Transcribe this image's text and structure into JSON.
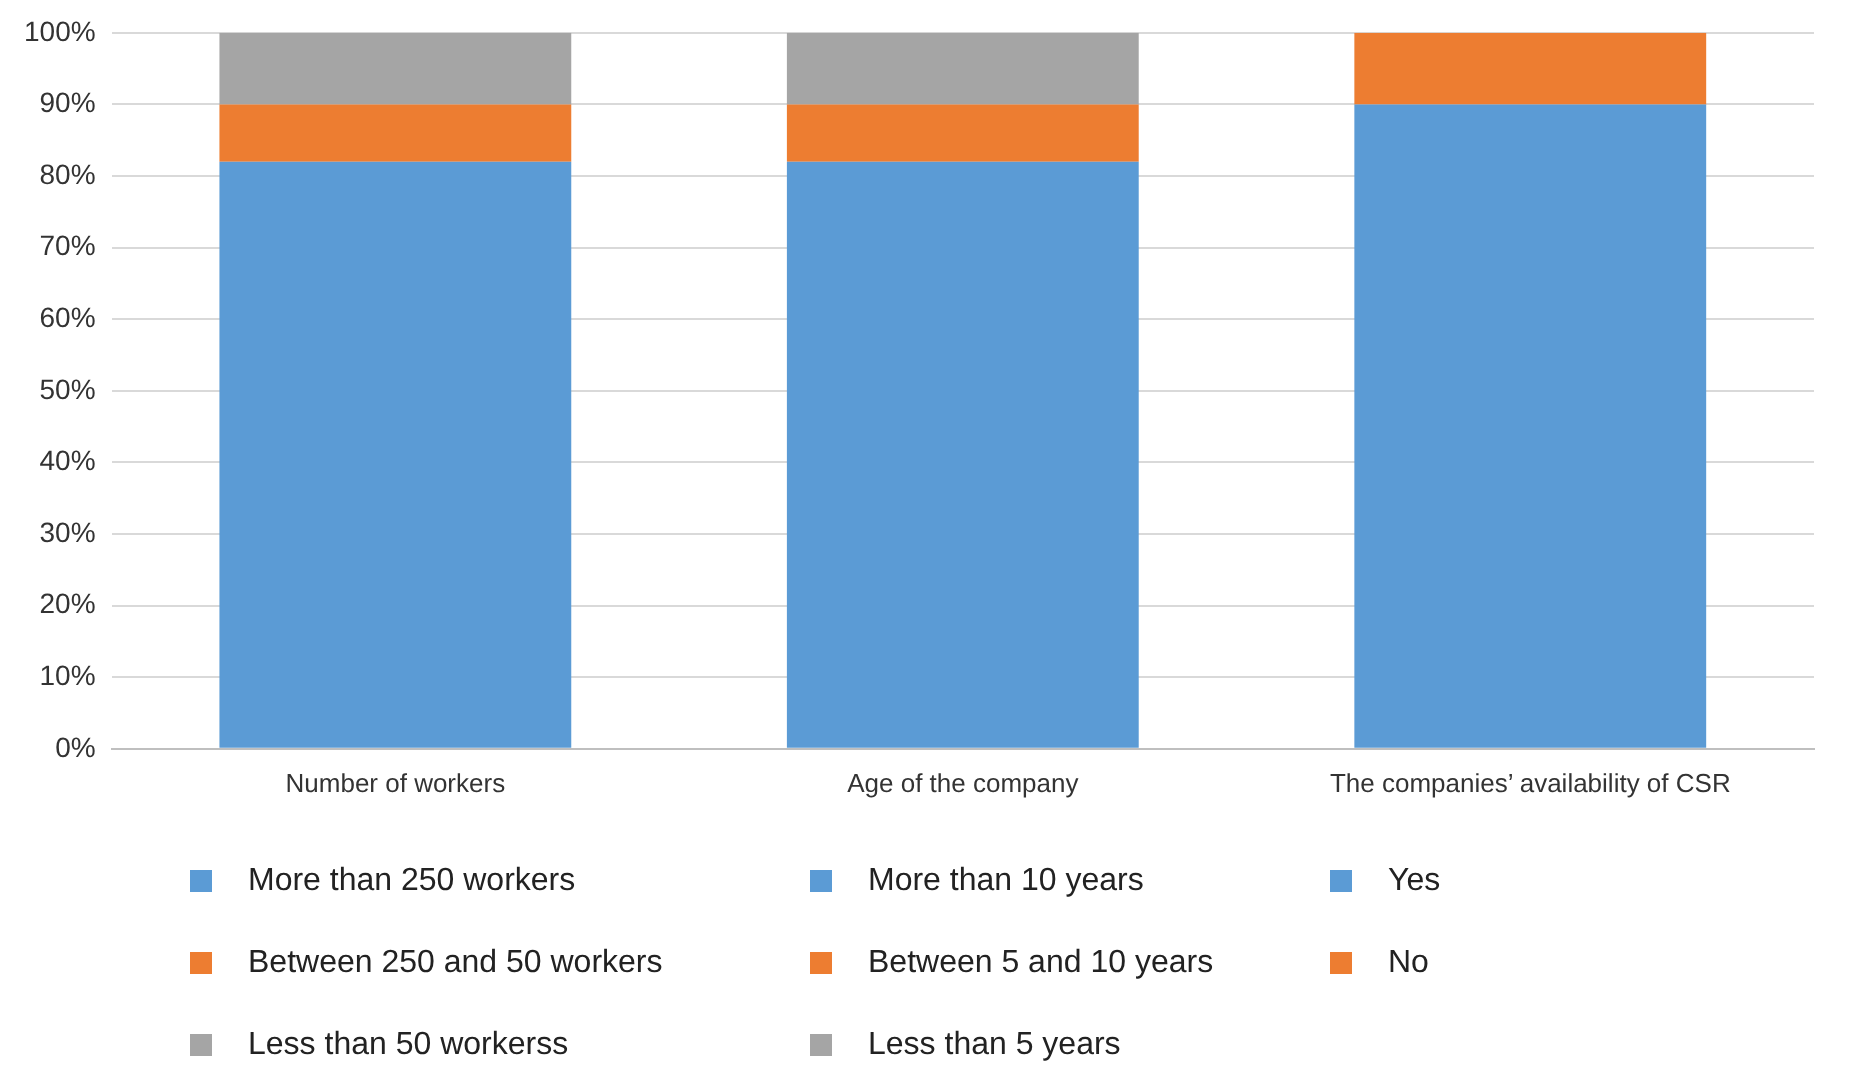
{
  "chart_data": {
    "type": "bar",
    "stacked": true,
    "categories": [
      "Number of workers",
      "Age of the company",
      "The companies’ availability of CSR"
    ],
    "series": [
      {
        "name": "More than 250 workers",
        "color": "#5b9bd5",
        "values": [
          82,
          null,
          null
        ]
      },
      {
        "name": "Between 250 and 50 workers",
        "color": "#ed7d31",
        "values": [
          8,
          null,
          null
        ]
      },
      {
        "name": "Less than 50 workerss",
        "color": "#a5a5a5",
        "values": [
          10,
          null,
          null
        ]
      },
      {
        "name": "More than 10 years",
        "color": "#5b9bd5",
        "values": [
          null,
          82,
          null
        ]
      },
      {
        "name": "Between 5 and 10 years",
        "color": "#ed7d31",
        "values": [
          null,
          8,
          null
        ]
      },
      {
        "name": "Less than 5 years",
        "color": "#a5a5a5",
        "values": [
          null,
          10,
          null
        ]
      },
      {
        "name": "Yes",
        "color": "#5b9bd5",
        "values": [
          null,
          null,
          90
        ]
      },
      {
        "name": "No",
        "color": "#ed7d31",
        "values": [
          null,
          null,
          10
        ]
      }
    ],
    "ylim": [
      0,
      100
    ],
    "yticks": [
      {
        "value": 0,
        "label": "0%"
      },
      {
        "value": 10,
        "label": "10%"
      },
      {
        "value": 20,
        "label": "20%"
      },
      {
        "value": 30,
        "label": "30%"
      },
      {
        "value": 40,
        "label": "40%"
      },
      {
        "value": 50,
        "label": "50%"
      },
      {
        "value": 60,
        "label": "60%"
      },
      {
        "value": 70,
        "label": "70%"
      },
      {
        "value": 80,
        "label": "80%"
      },
      {
        "value": 90,
        "label": "90%"
      },
      {
        "value": 100,
        "label": "100%"
      }
    ],
    "grid": "y",
    "legend": "bottom"
  }
}
